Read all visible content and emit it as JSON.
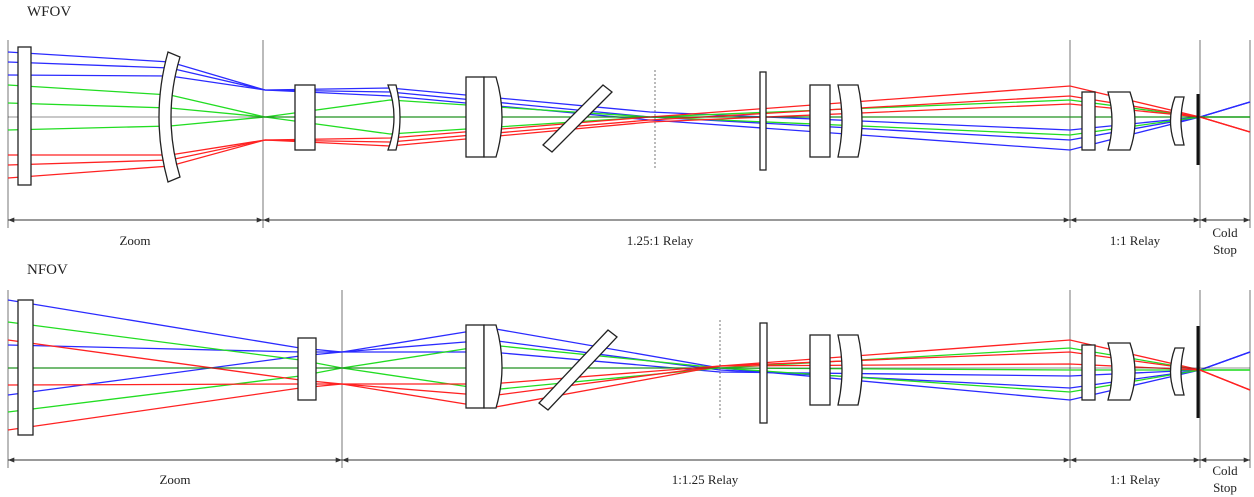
{
  "panels": [
    {
      "title": "WFOV",
      "sections": [
        "Zoom",
        "1.25:1 Relay",
        "1:1 Relay",
        "Cold Stop"
      ]
    },
    {
      "title": "NFOV",
      "sections": [
        "Zoom",
        "1:1.25 Relay",
        "1:1 Relay",
        "Cold Stop"
      ]
    }
  ]
}
